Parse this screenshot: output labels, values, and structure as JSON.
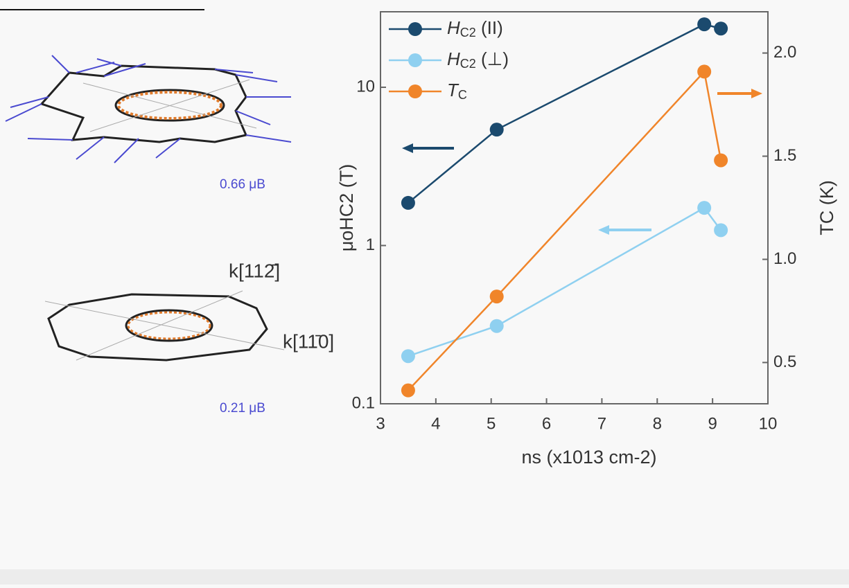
{
  "chart_data": {
    "type": "line",
    "x_label": "ns (x1013 cm-2)",
    "y_label": "μoHC2 (T)",
    "y2_label": "TC (K)",
    "xlim": [
      3,
      10
    ],
    "xticks": [
      3,
      4,
      5,
      6,
      7,
      8,
      9,
      10
    ],
    "ylim": [
      0.1,
      30
    ],
    "yticks": [
      0.1,
      1,
      10
    ],
    "ylog": true,
    "y2lim": [
      0.3,
      2.2
    ],
    "y2ticks": [
      0.5,
      {
        "value": 1,
        "label": "1.0"
      },
      1.5,
      {
        "value": 2,
        "label": "2.0"
      }
    ],
    "legend": "upper left",
    "x": [
      3.5,
      5.1,
      8.85,
      9.15
    ],
    "series": [
      {
        "name": "HC2 (II)",
        "color": "#1b4a6e",
        "values": [
          1.86,
          5.4,
          25,
          23.5
        ]
      },
      {
        "name": "HC2 (⊥)",
        "color": "#8fd0f0",
        "values": [
          0.2,
          0.31,
          1.73,
          1.25
        ]
      },
      {
        "name": "TC",
        "color": "#f0852a",
        "axis": "y2",
        "values": [
          0.365,
          0.82,
          1.91,
          1.48
        ]
      }
    ]
  },
  "illustration": {
    "top_moment": "0.66 μB",
    "bottom_moment": "0.21 μB",
    "k_upper": "k[112̄]",
    "k_lower": "k[11̄0]"
  }
}
